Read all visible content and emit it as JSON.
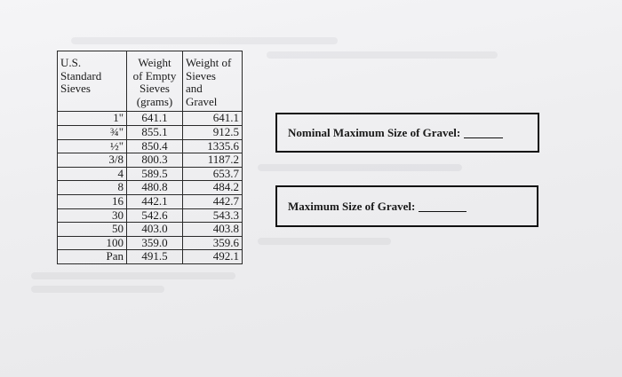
{
  "table": {
    "headers": [
      "U.S.\nStandard\nSieves",
      "Weight\nof Empty\nSieves\n(grams)",
      "Weight of\nSieves\nand\nGravel"
    ],
    "rows": [
      {
        "sieve": "1\"",
        "empty": "641.1",
        "gravel": "641.1"
      },
      {
        "sieve": "¾\"",
        "empty": "855.1",
        "gravel": "912.5"
      },
      {
        "sieve": "½\"",
        "empty": "850.4",
        "gravel": "1335.6"
      },
      {
        "sieve": "3/8",
        "empty": "800.3",
        "gravel": "1187.2"
      },
      {
        "sieve": "4",
        "empty": "589.5",
        "gravel": "653.7"
      },
      {
        "sieve": "8",
        "empty": "480.8",
        "gravel": "484.2"
      },
      {
        "sieve": "16",
        "empty": "442.1",
        "gravel": "442.7"
      },
      {
        "sieve": "30",
        "empty": "542.6",
        "gravel": "543.3"
      },
      {
        "sieve": "50",
        "empty": "403.0",
        "gravel": "403.8"
      },
      {
        "sieve": "100",
        "empty": "359.0",
        "gravel": "359.6"
      },
      {
        "sieve": "Pan",
        "empty": "491.5",
        "gravel": "492.1"
      }
    ]
  },
  "questions": {
    "nominal_label": "Nominal Maximum Size of Gravel:",
    "maximum_label": "Maximum Size of Gravel:"
  }
}
